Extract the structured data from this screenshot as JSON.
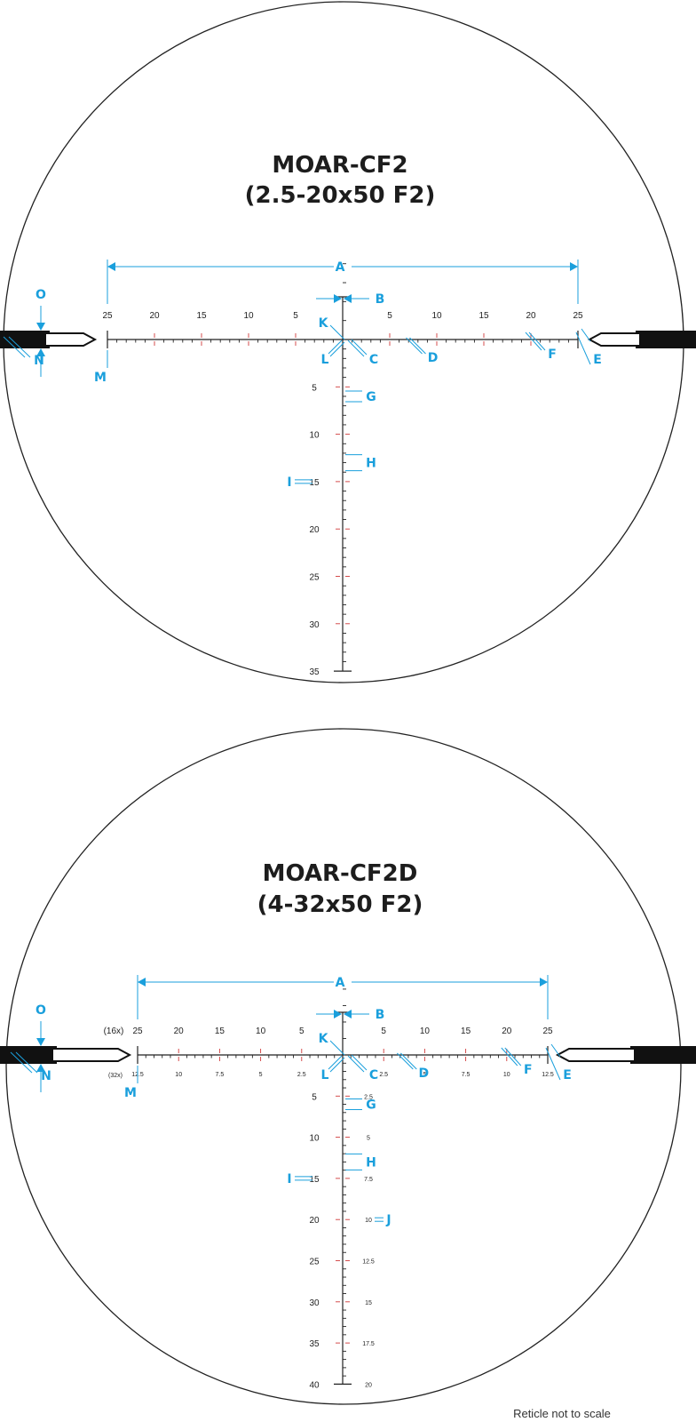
{
  "note": "Reticle not to scale",
  "colors": {
    "callout": "#1a9fdc",
    "ink": "#222222",
    "subtension": "#d03a3a"
  },
  "reticles": [
    {
      "title": "MOAR-CF2",
      "subtitle": "(2.5-20x50 F2)",
      "h_left_labels": [
        "25",
        "20",
        "15",
        "10",
        "5"
      ],
      "h_right_labels": [
        "5",
        "10",
        "15",
        "20",
        "25"
      ],
      "v_labels": [
        "5",
        "10",
        "15",
        "20",
        "25",
        "30",
        "35"
      ],
      "callouts": [
        "A",
        "B",
        "C",
        "D",
        "E",
        "F",
        "G",
        "H",
        "I",
        "K",
        "L",
        "M",
        "N",
        "O"
      ]
    },
    {
      "title": "MOAR-CF2D",
      "subtitle": "(4-32x50 F2)",
      "mag_top": "(16x)",
      "mag_bottom": "(32x)",
      "h_left_labels": [
        "25",
        "20",
        "15",
        "10",
        "5"
      ],
      "h_right_labels": [
        "5",
        "10",
        "15",
        "20",
        "25"
      ],
      "h_left_labels_low": [
        "12.5",
        "10",
        "7.5",
        "5",
        "2.5"
      ],
      "h_right_labels_low": [
        "2.5",
        "5",
        "7.5",
        "10",
        "12.5"
      ],
      "v_labels": [
        "5",
        "10",
        "15",
        "20",
        "25",
        "30",
        "35",
        "40"
      ],
      "v_labels_right": [
        "2.5",
        "5",
        "7.5",
        "10",
        "12.5",
        "15",
        "17.5",
        "20"
      ],
      "callouts": [
        "A",
        "B",
        "C",
        "D",
        "E",
        "F",
        "G",
        "H",
        "I",
        "J",
        "K",
        "L",
        "M",
        "N",
        "O"
      ]
    }
  ]
}
